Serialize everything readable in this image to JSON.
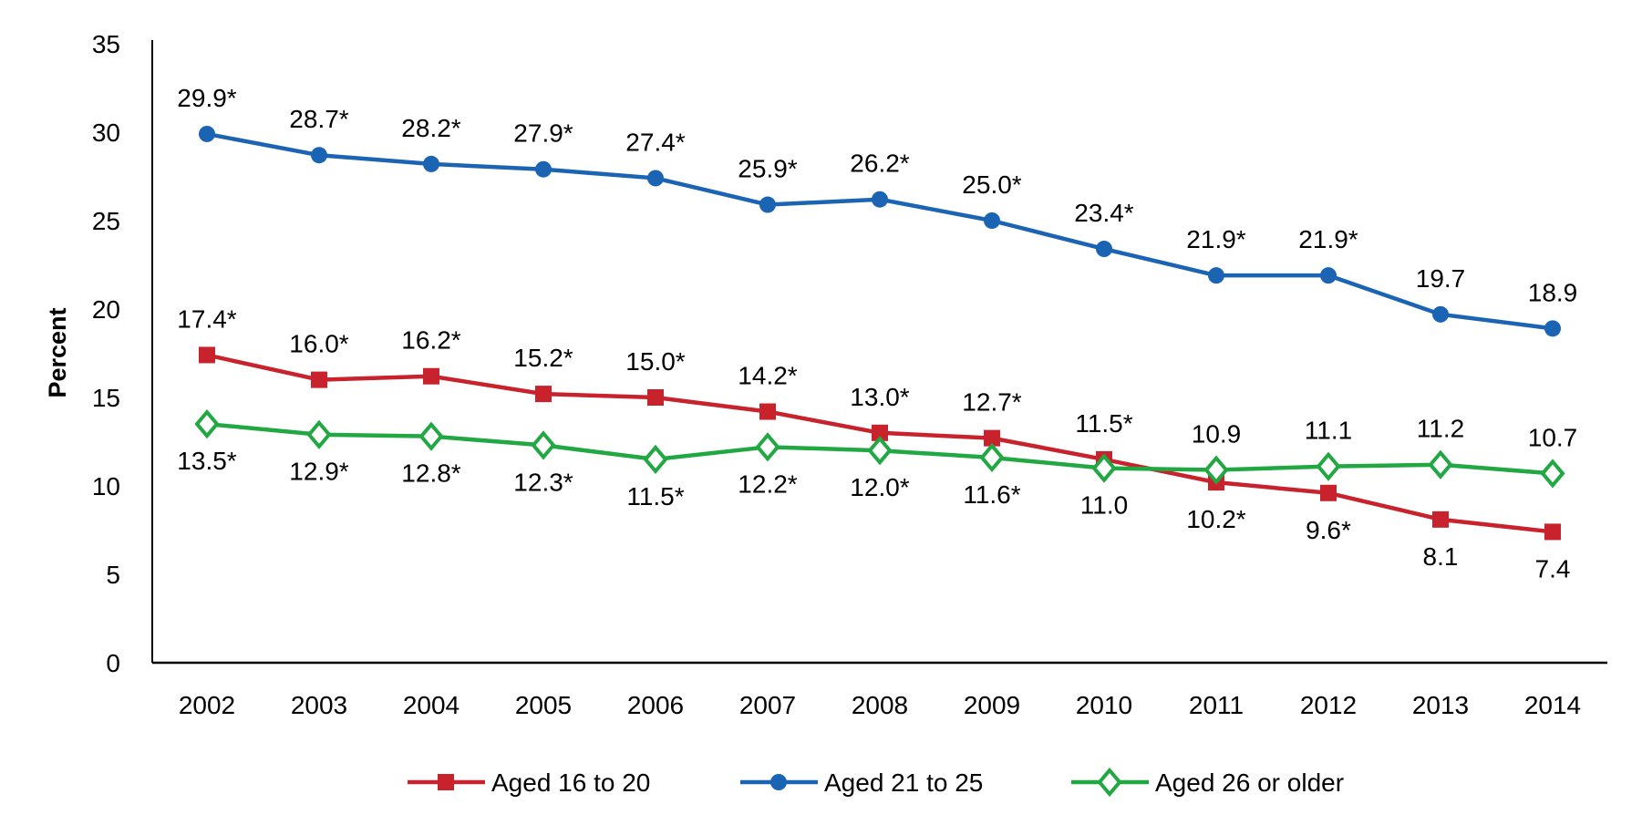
{
  "chart_data": {
    "type": "line",
    "title": "",
    "xlabel": "",
    "ylabel": "Percent",
    "ylim": [
      0,
      35
    ],
    "yticks": [
      "0",
      "5",
      "10",
      "15",
      "20",
      "25",
      "30",
      "35"
    ],
    "grid": false,
    "legend_position": "bottom",
    "categories": [
      "2002",
      "2003",
      "2004",
      "2005",
      "2006",
      "2007",
      "2008",
      "2009",
      "2010",
      "2011",
      "2012",
      "2013",
      "2014"
    ],
    "series": [
      {
        "name": "Aged 16 to 20",
        "color": "#C8232C",
        "marker": "square",
        "values": [
          17.4,
          16.0,
          16.2,
          15.2,
          15.0,
          14.2,
          13.0,
          12.7,
          11.5,
          10.2,
          9.6,
          8.1,
          7.4
        ],
        "labels": [
          "17.4*",
          "16.0*",
          "16.2*",
          "15.2*",
          "15.0*",
          "14.2*",
          "13.0*",
          "12.7*",
          "11.5*",
          "10.2*",
          "9.6*",
          "8.1",
          "7.4"
        ]
      },
      {
        "name": "Aged 21 to 25",
        "color": "#1B64B4",
        "marker": "circle",
        "values": [
          29.9,
          28.7,
          28.2,
          27.9,
          27.4,
          25.9,
          26.2,
          25.0,
          23.4,
          21.9,
          21.9,
          19.7,
          18.9
        ],
        "labels": [
          "29.9*",
          "28.7*",
          "28.2*",
          "27.9*",
          "27.4*",
          "25.9*",
          "26.2*",
          "25.0*",
          "23.4*",
          "21.9*",
          "21.9*",
          "19.7",
          "18.9"
        ]
      },
      {
        "name": "Aged 26 or older",
        "color": "#22A843",
        "marker": "diamond-open",
        "values": [
          13.5,
          12.9,
          12.8,
          12.3,
          11.5,
          12.2,
          12.0,
          11.6,
          11.0,
          10.9,
          11.1,
          11.2,
          10.7
        ],
        "labels": [
          "13.5*",
          "12.9*",
          "12.8*",
          "12.3*",
          "11.5*",
          "12.2*",
          "12.0*",
          "11.6*",
          "11.0",
          "10.9",
          "11.1",
          "11.2",
          "10.7"
        ]
      }
    ]
  }
}
